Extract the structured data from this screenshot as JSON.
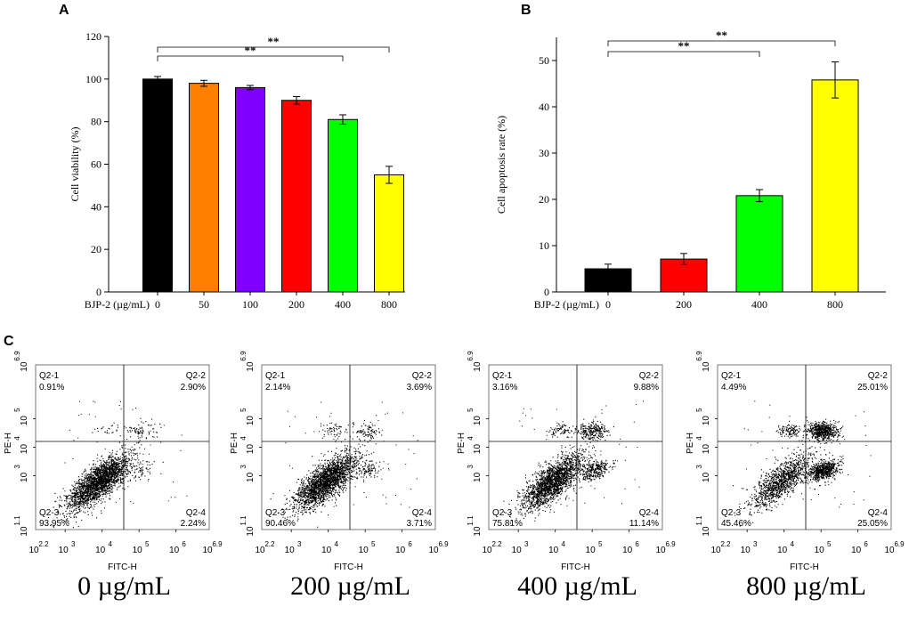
{
  "panels": {
    "a": "A",
    "b": "B",
    "c": "C"
  },
  "chart_data": [
    {
      "type": "bar",
      "id": "A",
      "title": "",
      "ylabel": "Cell viability (%)",
      "xlabel": "BJP-2 (µg/mL)",
      "categories": [
        "0",
        "50",
        "100",
        "200",
        "400",
        "800"
      ],
      "values": [
        100,
        98,
        96,
        90,
        81,
        55
      ],
      "errors": [
        1.2,
        1.4,
        1.0,
        1.8,
        2.2,
        4.0
      ],
      "colors": [
        "#000000",
        "#FF8000",
        "#8000FF",
        "#FF0000",
        "#00FF00",
        "#FFFF00"
      ],
      "ylim": [
        0,
        120
      ],
      "yticks": [
        "0",
        "20",
        "40",
        "60",
        "80",
        "100",
        "120"
      ],
      "significance": [
        {
          "from": "0",
          "to": "400",
          "label": "**"
        },
        {
          "from": "0",
          "to": "800",
          "label": "**"
        }
      ]
    },
    {
      "type": "bar",
      "id": "B",
      "title": "",
      "ylabel": "Cell apoptosis rate (%)",
      "xlabel": "BJP-2 (µg/mL)",
      "categories": [
        "0",
        "200",
        "400",
        "800"
      ],
      "values": [
        5,
        7.1,
        20.8,
        45.8
      ],
      "errors": [
        1.0,
        1.2,
        1.3,
        3.9
      ],
      "colors": [
        "#000000",
        "#FF0000",
        "#00FF00",
        "#FFFF00"
      ],
      "ylim": [
        0,
        55
      ],
      "yticks": [
        "0",
        "10",
        "20",
        "30",
        "40",
        "50"
      ],
      "significance": [
        {
          "from": "0",
          "to": "400",
          "label": "**"
        },
        {
          "from": "0",
          "to": "800",
          "label": "**"
        }
      ]
    },
    {
      "type": "scatter",
      "id": "C",
      "xlabel": "FITC-H",
      "ylabel": "PE-H",
      "x_ticks": [
        {
          "base": "10",
          "exp": "2.2"
        },
        {
          "base": "10",
          "exp": "3"
        },
        {
          "base": "10",
          "exp": "4"
        },
        {
          "base": "10",
          "exp": "5"
        },
        {
          "base": "10",
          "exp": "6"
        },
        {
          "base": "10",
          "exp": "6.9"
        }
      ],
      "y_ticks": [
        {
          "base": "10",
          "exp": "1.1"
        },
        {
          "base": "10",
          "exp": "3"
        },
        {
          "base": "10",
          "exp": "4"
        },
        {
          "base": "10",
          "exp": "5"
        },
        {
          "base": "10",
          "exp": "6.9"
        }
      ],
      "plots": [
        {
          "caption": "0 µg/mL",
          "q1": "Q2-1",
          "q1v": "0.91%",
          "q2": "Q2-2",
          "q2v": "2.90%",
          "q3": "Q2-3",
          "q3v": "93.95%",
          "q4": "Q2-4",
          "q4v": "2.24%"
        },
        {
          "caption": "200 µg/mL",
          "q1": "Q2-1",
          "q1v": "2.14%",
          "q2": "Q2-2",
          "q2v": "3.69%",
          "q3": "Q2-3",
          "q3v": "90.46%",
          "q4": "Q2-4",
          "q4v": "3.71%"
        },
        {
          "caption": "400 µg/mL",
          "q1": "Q2-1",
          "q1v": "3.16%",
          "q2": "Q2-2",
          "q2v": "9.88%",
          "q3": "Q2-3",
          "q3v": "75.81%",
          "q4": "Q2-4",
          "q4v": "11.14%"
        },
        {
          "caption": "800 µg/mL",
          "q1": "Q2-1",
          "q1v": "4.49%",
          "q2": "Q2-2",
          "q2v": "25.01%",
          "q3": "Q2-3",
          "q3v": "45.46%",
          "q4": "Q2-4",
          "q4v": "25.05%"
        }
      ]
    }
  ]
}
